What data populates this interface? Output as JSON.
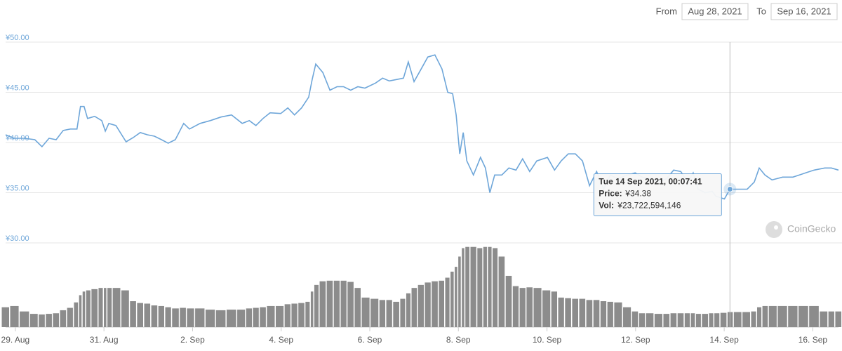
{
  "header": {
    "from_label": "From",
    "from_value": "Aug 28, 2021",
    "to_label": "To",
    "to_value": "Sep 16, 2021"
  },
  "watermark": "CoinGecko",
  "tooltip": {
    "date": "Tue 14 Sep 2021, 00:07:41",
    "price_label": "Price:",
    "price": "¥34.38",
    "vol_label": "Vol:",
    "vol": "¥23,722,594,146",
    "index": 105
  },
  "chart_data": {
    "type": "line",
    "x": [
      -0.22,
      -0.03,
      0.21,
      0.44,
      0.6,
      0.76,
      0.92,
      1.08,
      1.24,
      1.39,
      1.47,
      1.55,
      1.63,
      1.79,
      1.95,
      2.03,
      2.11,
      2.27,
      2.5,
      2.66,
      2.82,
      2.98,
      3.14,
      3.3,
      3.45,
      3.61,
      3.8,
      3.93,
      4.17,
      4.4,
      4.64,
      4.88,
      5.12,
      5.28,
      5.43,
      5.59,
      5.75,
      5.99,
      6.15,
      6.3,
      6.46,
      6.62,
      6.7,
      6.78,
      6.94,
      7.1,
      7.26,
      7.41,
      7.57,
      7.73,
      7.89,
      8.13,
      8.29,
      8.44,
      8.6,
      8.76,
      8.87,
      9.0,
      9.16,
      9.31,
      9.47,
      9.63,
      9.76,
      9.87,
      9.95,
      10.03,
      10.11,
      10.19,
      10.34,
      10.5,
      10.61,
      10.71,
      10.82,
      10.98,
      11.14,
      11.3,
      11.45,
      11.61,
      11.77,
      12.01,
      12.17,
      12.32,
      12.48,
      12.64,
      12.8,
      12.96,
      13.12,
      13.28,
      13.43,
      13.59,
      13.83,
      13.99,
      14.15,
      14.3,
      14.54,
      14.7,
      14.86,
      15.02,
      15.18,
      15.3,
      15.41,
      15.57,
      15.73,
      15.81,
      16.005,
      16.13,
      16.29,
      16.52,
      16.68,
      16.79,
      16.92,
      17.08,
      17.32,
      17.55,
      17.79,
      18.03,
      18.27,
      18.42,
      18.58
    ],
    "series": [
      {
        "name": "Price",
        "color": "#6ea6d9",
        "values": [
          40.77,
          40.42,
          40.42,
          40.28,
          39.58,
          40.42,
          40.28,
          41.2,
          41.34,
          41.34,
          43.59,
          43.59,
          42.39,
          42.61,
          42.18,
          41.13,
          41.9,
          41.69,
          40.07,
          40.49,
          40.99,
          40.77,
          40.63,
          40.28,
          39.93,
          40.28,
          41.9,
          41.34,
          41.9,
          42.18,
          42.54,
          42.75,
          41.9,
          42.18,
          41.69,
          42.39,
          42.96,
          42.89,
          43.45,
          42.75,
          43.45,
          44.51,
          46.27,
          47.82,
          46.97,
          45.21,
          45.56,
          45.56,
          45.21,
          45.56,
          45.42,
          45.92,
          46.41,
          46.13,
          46.27,
          46.41,
          48.03,
          46.06,
          47.32,
          48.52,
          48.73,
          47.32,
          45.0,
          44.86,
          42.75,
          38.87,
          40.99,
          38.17,
          36.76,
          38.52,
          37.46,
          35.0,
          36.76,
          36.76,
          37.46,
          37.25,
          38.38,
          37.11,
          38.17,
          38.52,
          37.25,
          38.17,
          38.87,
          38.87,
          38.17,
          35.7,
          37.11,
          35.35,
          36.76,
          36.41,
          36.76,
          36.97,
          36.55,
          36.41,
          36.06,
          36.41,
          37.25,
          37.11,
          36.06,
          36.97,
          35.35,
          35.0,
          35.14,
          34.65,
          34.38,
          35.35,
          35.35,
          35.35,
          36.06,
          37.46,
          36.76,
          36.27,
          36.55,
          36.55,
          36.9,
          37.25,
          37.46,
          37.46,
          37.25
        ]
      },
      {
        "name": "Vol",
        "color": "#8c8c8c",
        "axis": "y2",
        "values": [
          33,
          35,
          26,
          22,
          21,
          22,
          23,
          28,
          32,
          41,
          53,
          59,
          61,
          63,
          65,
          65,
          65,
          65,
          61,
          43,
          40,
          39,
          36,
          35,
          33,
          31,
          32,
          31,
          31,
          29,
          28,
          29,
          29,
          31,
          32,
          33,
          35,
          35,
          38,
          39,
          40,
          42,
          59,
          70,
          76,
          77,
          77,
          77,
          75,
          65,
          49,
          47,
          45,
          45,
          42,
          47,
          56,
          65,
          70,
          74,
          76,
          77,
          82,
          92,
          100,
          117,
          131,
          133,
          133,
          131,
          133,
          133,
          131,
          117,
          85,
          68,
          65,
          66,
          65,
          61,
          59,
          49,
          48,
          47,
          47,
          45,
          45,
          43,
          42,
          41,
          33,
          26,
          23,
          23,
          22,
          22,
          23,
          23,
          23,
          23,
          22,
          22,
          23,
          23,
          23.72,
          25,
          25,
          25,
          26,
          33,
          35,
          35,
          35,
          35,
          35,
          35,
          26,
          26,
          26
        ]
      }
    ],
    "xlim": [
      -0.22,
      18.58
    ],
    "xticks": [
      {
        "value": 0,
        "label": "29. Aug"
      },
      {
        "value": 2,
        "label": "31. Aug"
      },
      {
        "value": 4,
        "label": "2. Sep"
      },
      {
        "value": 6,
        "label": "4. Sep"
      },
      {
        "value": 8,
        "label": "6. Sep"
      },
      {
        "value": 10,
        "label": "8. Sep"
      },
      {
        "value": 12,
        "label": "10. Sep"
      },
      {
        "value": 14,
        "label": "12. Sep"
      },
      {
        "value": 16,
        "label": "14. Sep"
      },
      {
        "value": 18,
        "label": "16. Sep"
      }
    ],
    "ylim": [
      30,
      50
    ],
    "yticks": [
      {
        "value": 30,
        "label": "¥30.00"
      },
      {
        "value": 35,
        "label": "¥35.00"
      },
      {
        "value": 40,
        "label": "¥40.00"
      },
      {
        "value": 45,
        "label": "¥45.00"
      },
      {
        "value": 50,
        "label": "¥50.00"
      }
    ],
    "y2lim": [
      0,
      135
    ],
    "grid": true
  }
}
